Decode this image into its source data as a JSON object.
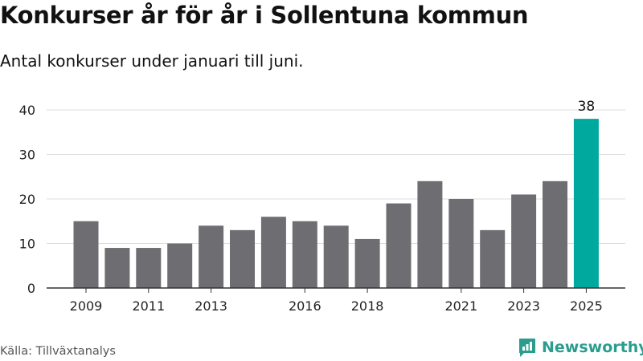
{
  "header": {
    "title": "Konkurser år för år i Sollentuna kommun",
    "subtitle": "Antal konkurser under januari till juni."
  },
  "footer": {
    "source": "Källa: Tillväxtanalys",
    "brand": "Newsworthy",
    "logo_icon": "newsworthy-logo-icon"
  },
  "colors": {
    "bar": "#6e6d72",
    "highlight": "#00a99d",
    "grid": "#dddddd",
    "axis": "#333333",
    "brand": "#2a9d8f"
  },
  "chart_data": {
    "type": "bar",
    "categories": [
      "2009",
      "2010",
      "2011",
      "2012",
      "2013",
      "2014",
      "2015",
      "2016",
      "2017",
      "2018",
      "2019",
      "2020",
      "2021",
      "2022",
      "2023",
      "2024",
      "2025"
    ],
    "values": [
      15,
      9,
      9,
      10,
      14,
      13,
      16,
      15,
      14,
      11,
      19,
      24,
      20,
      13,
      21,
      24,
      38
    ],
    "xtick_labels": [
      "2009",
      "2011",
      "2013",
      "2016",
      "2018",
      "2021",
      "2023",
      "2025"
    ],
    "yticks": [
      0,
      10,
      20,
      30,
      40
    ],
    "ylim": [
      0,
      40
    ],
    "highlight_category": "2025",
    "data_labels": [
      {
        "category": "2025",
        "text": "38"
      }
    ],
    "grid": "horizontal",
    "legend": "none"
  }
}
